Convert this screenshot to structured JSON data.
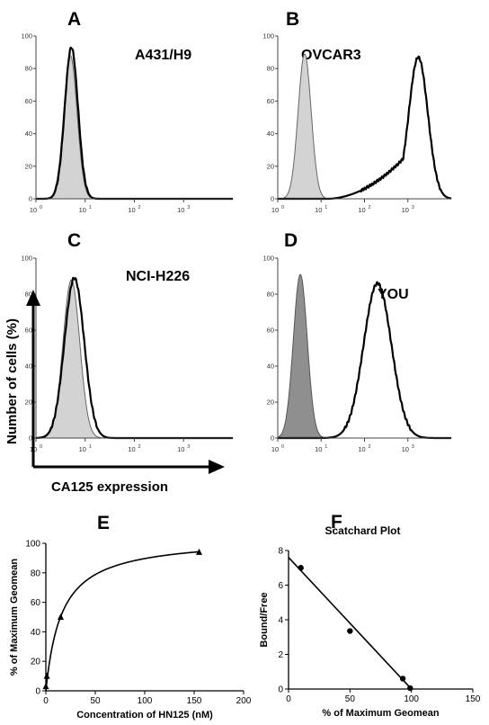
{
  "chart_data": [
    {
      "id": "A",
      "panel_label": "A",
      "type": "area",
      "title": "A431/H9",
      "x_scale": "log",
      "xlim": [
        1,
        10000
      ],
      "ylim": [
        0,
        100
      ],
      "y_ticks": [
        "0",
        "20",
        "40",
        "60",
        "80",
        "100"
      ],
      "x_ticks": [
        {
          "base": "10",
          "exp": "0"
        },
        {
          "base": "10",
          "exp": "1"
        },
        {
          "base": "10",
          "exp": "2"
        },
        {
          "base": "10",
          "exp": "3"
        }
      ],
      "series": [
        {
          "role": "control",
          "fill": "#d3d3d3",
          "stroke": "#666666",
          "peak_log": 0.7,
          "width_log": 0.135,
          "peak": 88,
          "tail": 0
        },
        {
          "role": "stained",
          "fill": "none",
          "stroke": "#000000",
          "peak_log": 0.72,
          "width_log": 0.135,
          "peak": 93,
          "tail": 0
        }
      ]
    },
    {
      "id": "B",
      "panel_label": "B",
      "type": "area",
      "title": "OVCAR3",
      "x_scale": "log",
      "xlim": [
        1,
        10000
      ],
      "ylim": [
        0,
        100
      ],
      "y_ticks": [
        "0",
        "20",
        "40",
        "60",
        "80",
        "100"
      ],
      "x_ticks": [
        {
          "base": "10",
          "exp": "0"
        },
        {
          "base": "10",
          "exp": "1"
        },
        {
          "base": "10",
          "exp": "2"
        },
        {
          "base": "10",
          "exp": "3"
        }
      ],
      "series": [
        {
          "role": "control",
          "fill": "#d3d3d3",
          "stroke": "#666666",
          "peak_log": 0.62,
          "width_log": 0.15,
          "peak": 89,
          "tail": 0
        },
        {
          "role": "stained",
          "fill": "none",
          "stroke": "#000000",
          "peak_log": 3.24,
          "width_log": 0.22,
          "peak": 87,
          "tail": 35,
          "tail_start_log": 1.2
        }
      ]
    },
    {
      "id": "C",
      "panel_label": "C",
      "type": "area",
      "title": "NCI-H226",
      "x_scale": "log",
      "xlim": [
        1,
        10000
      ],
      "ylim": [
        0,
        100
      ],
      "y_ticks": [
        "0",
        "20",
        "40",
        "60",
        "80",
        "100"
      ],
      "x_ticks": [
        {
          "base": "10",
          "exp": "0"
        },
        {
          "base": "10",
          "exp": "1"
        },
        {
          "base": "10",
          "exp": "2"
        },
        {
          "base": "10",
          "exp": "3"
        }
      ],
      "series": [
        {
          "role": "control",
          "fill": "#d3d3d3",
          "stroke": "#666666",
          "peak_log": 0.72,
          "width_log": 0.17,
          "peak": 88,
          "tail": 0
        },
        {
          "role": "stained",
          "fill": "none",
          "stroke": "#000000",
          "peak_log": 0.78,
          "width_log": 0.2,
          "peak": 89,
          "tail": 0
        }
      ]
    },
    {
      "id": "D",
      "panel_label": "D",
      "type": "area",
      "title": "YOU",
      "x_scale": "log",
      "xlim": [
        1,
        10000
      ],
      "ylim": [
        0,
        100
      ],
      "y_ticks": [
        "0",
        "20",
        "40",
        "60",
        "80",
        "100"
      ],
      "x_ticks": [
        {
          "base": "10",
          "exp": "0"
        },
        {
          "base": "10",
          "exp": "1"
        },
        {
          "base": "10",
          "exp": "2"
        },
        {
          "base": "10",
          "exp": "3"
        }
      ],
      "series": [
        {
          "role": "control",
          "fill": "#8f8f8f",
          "stroke": "#555555",
          "peak_log": 0.52,
          "width_log": 0.16,
          "peak": 91,
          "tail": 0
        },
        {
          "role": "stained",
          "fill": "none",
          "stroke": "#000000",
          "peak_log": 2.3,
          "width_log": 0.32,
          "peak": 86,
          "tail": 0
        }
      ]
    },
    {
      "id": "E",
      "panel_label": "E",
      "type": "line",
      "title": "",
      "xlabel": "Concentration of HN125 (nM)",
      "ylabel": "% of Maximum Geomean",
      "xlim": [
        0,
        200
      ],
      "ylim": [
        0,
        100
      ],
      "x_ticks": [
        0,
        50,
        100,
        150,
        200
      ],
      "y_ticks": [
        0,
        20,
        40,
        60,
        80,
        100
      ],
      "marker": "triangle",
      "points": [
        {
          "x": 0,
          "y": 3
        },
        {
          "x": 1,
          "y": 10
        },
        {
          "x": 15,
          "y": 50
        },
        {
          "x": 155,
          "y": 94
        }
      ],
      "fit": {
        "model": "hyperbola",
        "bmax": 104,
        "kd": 16
      }
    },
    {
      "id": "F",
      "panel_label": "F",
      "type": "scatter",
      "title": "Scatchard Plot",
      "xlabel": "% of Maximum Geomean",
      "ylabel": "Bound/Free",
      "xlim": [
        0,
        150
      ],
      "ylim": [
        0,
        8
      ],
      "x_ticks": [
        0,
        50,
        100,
        150
      ],
      "y_ticks": [
        0,
        2,
        4,
        6,
        8
      ],
      "marker": "circle",
      "points": [
        {
          "x": 10,
          "y": 7.0
        },
        {
          "x": 50,
          "y": 3.35
        },
        {
          "x": 93,
          "y": 0.6
        },
        {
          "x": 99,
          "y": 0.05
        }
      ],
      "fit_line": [
        {
          "x": 0,
          "y": 7.6
        },
        {
          "x": 100,
          "y": 0
        }
      ]
    }
  ],
  "flow_axes": {
    "ylabel": "Number of cells (%)",
    "xlabel": "CA125 expression"
  }
}
